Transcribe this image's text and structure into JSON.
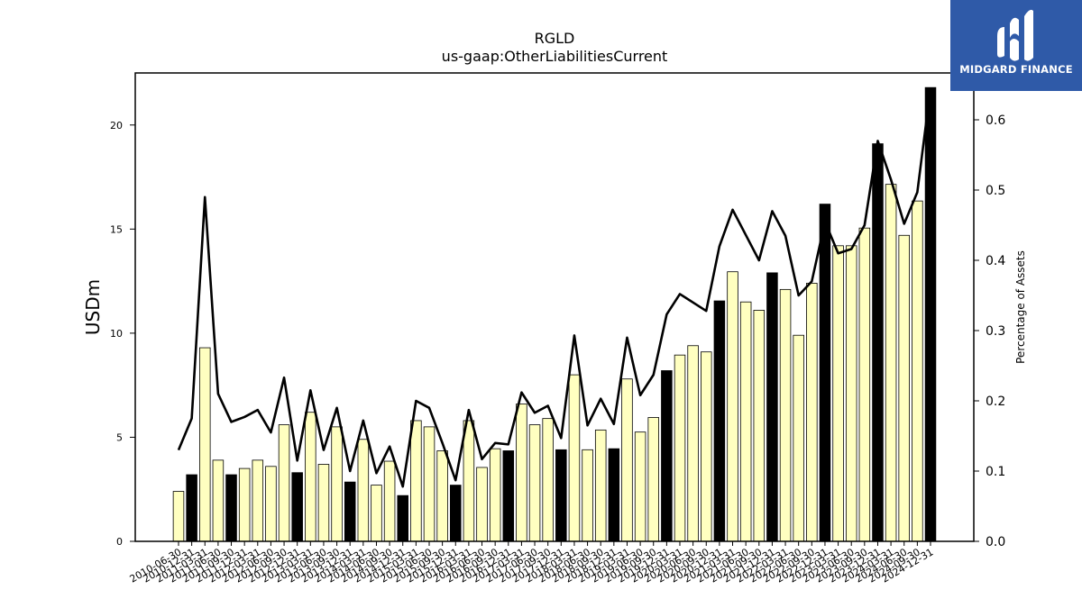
{
  "chart_data": {
    "type": "bar",
    "title": "RGLD",
    "subtitle": "us-gaap:OtherLiabilitiesCurrent",
    "ylabel": "USDm",
    "y2label": "Percentage of Assets",
    "ylim": [
      0,
      22.5
    ],
    "y2lim": [
      0,
      0.6
    ],
    "yticks": [
      0,
      5,
      10,
      15,
      20
    ],
    "y2ticks": [
      "0.0",
      "0.1",
      "0.2",
      "0.3",
      "0.4",
      "0.5",
      "0.6"
    ],
    "categories": [
      "2010-06-30",
      "2010-12-31",
      "2011-03-31",
      "2011-06-30",
      "2011-09-30",
      "2011-12-31",
      "2012-03-31",
      "2012-06-30",
      "2012-09-30",
      "2012-12-31",
      "2013-03-31",
      "2013-06-30",
      "2013-09-30",
      "2013-12-31",
      "2014-03-31",
      "2014-06-30",
      "2014-09-30",
      "2014-12-31",
      "2015-03-31",
      "2015-06-30",
      "2015-09-30",
      "2015-12-31",
      "2016-03-31",
      "2016-06-30",
      "2016-09-30",
      "2016-12-31",
      "2017-03-31",
      "2017-06-30",
      "2017-09-30",
      "2017-12-31",
      "2018-03-31",
      "2018-06-30",
      "2018-09-30",
      "2018-12-31",
      "2019-03-31",
      "2019-06-30",
      "2019-09-30",
      "2019-12-31",
      "2020-03-31",
      "2020-06-30",
      "2020-09-30",
      "2020-12-31",
      "2021-03-31",
      "2021-06-30",
      "2021-09-30",
      "2021-12-31",
      "2022-03-31",
      "2022-06-30",
      "2022-09-30",
      "2022-12-31",
      "2023-03-31",
      "2023-06-30",
      "2023-09-30",
      "2023-12-31",
      "2024-03-31",
      "2024-06-30",
      "2024-09-30",
      "2024-12-31"
    ],
    "values": [
      2.4,
      3.2,
      9.3,
      3.9,
      3.2,
      3.5,
      3.9,
      3.6,
      5.6,
      3.3,
      6.2,
      3.7,
      5.5,
      2.85,
      4.9,
      2.7,
      3.85,
      2.2,
      5.8,
      5.5,
      4.35,
      2.7,
      5.8,
      3.55,
      4.45,
      4.35,
      6.6,
      5.6,
      5.9,
      4.4,
      8.0,
      4.4,
      5.35,
      4.45,
      7.8,
      5.25,
      5.95,
      8.2,
      8.95,
      9.4,
      9.1,
      11.55,
      12.95,
      11.5,
      11.1,
      12.9,
      12.1,
      9.9,
      12.4,
      16.2,
      14.2,
      14.2,
      15.05,
      19.1,
      17.15,
      14.7,
      16.35,
      21.8
    ],
    "q4_dark": [
      false,
      true,
      false,
      false,
      true,
      false,
      false,
      false,
      false,
      true,
      false,
      false,
      false,
      true,
      false,
      false,
      false,
      true,
      false,
      false,
      false,
      true,
      false,
      false,
      false,
      true,
      false,
      false,
      false,
      true,
      false,
      false,
      false,
      true,
      false,
      false,
      false,
      true,
      false,
      false,
      false,
      true,
      false,
      false,
      false,
      true,
      false,
      false,
      false,
      true,
      false,
      false,
      false,
      true,
      false,
      false,
      false,
      true
    ],
    "pct_assets": [
      0.13,
      0.175,
      0.49,
      0.21,
      0.17,
      0.177,
      0.187,
      0.155,
      0.233,
      0.115,
      0.215,
      0.13,
      0.19,
      0.1,
      0.172,
      0.097,
      0.135,
      0.078,
      0.2,
      0.19,
      0.14,
      0.087,
      0.187,
      0.117,
      0.14,
      0.138,
      0.212,
      0.183,
      0.193,
      0.147,
      0.293,
      0.165,
      0.203,
      0.167,
      0.29,
      0.208,
      0.237,
      0.323,
      0.352,
      0.34,
      0.328,
      0.42,
      0.472,
      0.436,
      0.4,
      0.47,
      0.435,
      0.35,
      0.37,
      0.455,
      0.41,
      0.416,
      0.45,
      0.57,
      0.515,
      0.452,
      0.497,
      0.645
    ],
    "colors": {
      "bar_light": "#ffffc0",
      "bar_dark": "#000000",
      "edge": "#000000",
      "line": "#000000"
    },
    "grid": false,
    "legend": "none"
  },
  "logo": {
    "text": "MIDGARD FINANCE",
    "icon": "midgard-logo-icon",
    "bg": "#2f5aa8"
  }
}
